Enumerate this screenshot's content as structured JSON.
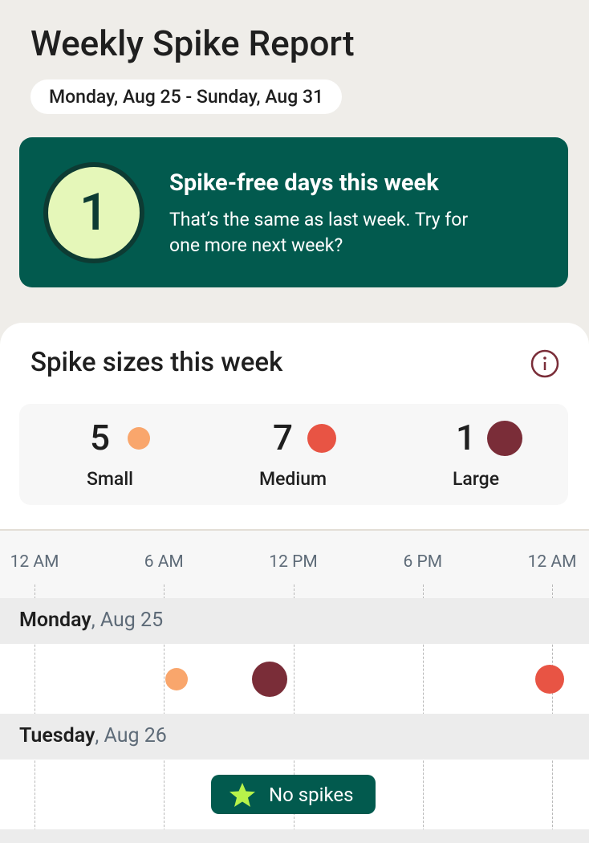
{
  "header": {
    "title": "Weekly Spike Report",
    "date_range": "Monday, Aug 25 - Sunday, Aug 31"
  },
  "summary": {
    "count": 1,
    "title": "Spike-free days this week",
    "message": "That’s the same as last week. Try for one more next week?"
  },
  "sizes": {
    "title": "Spike sizes this week",
    "items": [
      {
        "count": 5,
        "label": "Small",
        "color": "#f9a66c"
      },
      {
        "count": 7,
        "label": "Medium",
        "color": "#e85444"
      },
      {
        "count": 1,
        "label": "Large",
        "color": "#7a2d38"
      }
    ]
  },
  "timeline": {
    "xlim": [
      0,
      24
    ],
    "xticks": [
      {
        "value": 0,
        "label": "12 AM"
      },
      {
        "value": 6,
        "label": "6 AM"
      },
      {
        "value": 12,
        "label": "12 PM"
      },
      {
        "value": 18,
        "label": "6 PM"
      },
      {
        "value": 24,
        "label": "12 AM"
      }
    ],
    "days": [
      {
        "day": "Monday",
        "date": ", Aug 25",
        "spikes": [
          {
            "hour": 6.6,
            "size": "Small"
          },
          {
            "hour": 10.9,
            "size": "Large"
          },
          {
            "hour": 23.9,
            "size": "Medium"
          }
        ]
      },
      {
        "day": "Tuesday",
        "date": ", Aug 26",
        "spikes": [],
        "empty": "No spikes"
      }
    ]
  }
}
